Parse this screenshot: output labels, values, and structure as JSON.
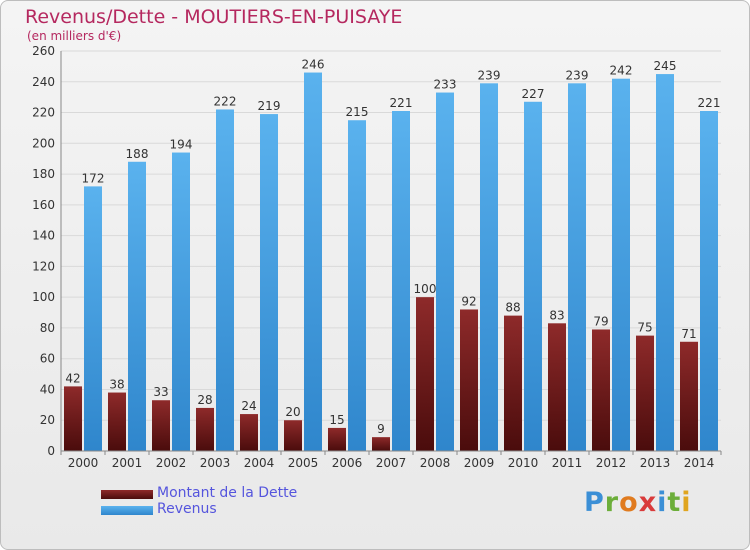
{
  "header": {
    "title": "Revenus/Dette - MOUTIERS-EN-PUISAYE",
    "subtitle": "(en milliers d'€)"
  },
  "chart_data": {
    "type": "bar",
    "categories": [
      "2000",
      "2001",
      "2002",
      "2003",
      "2004",
      "2005",
      "2006",
      "2007",
      "2008",
      "2009",
      "2010",
      "2011",
      "2012",
      "2013",
      "2014"
    ],
    "series": [
      {
        "name": "Montant de la Dette",
        "color": "#7a1e1e",
        "values": [
          42,
          38,
          33,
          28,
          24,
          20,
          15,
          9,
          100,
          92,
          88,
          83,
          79,
          75,
          71
        ]
      },
      {
        "name": "Revenus",
        "color": "#3f9fe6",
        "values": [
          172,
          188,
          194,
          222,
          219,
          246,
          215,
          221,
          233,
          239,
          227,
          239,
          242,
          245,
          221
        ]
      }
    ],
    "ylim": [
      0,
      260
    ],
    "yticks": [
      0,
      20,
      40,
      60,
      80,
      100,
      120,
      140,
      160,
      180,
      200,
      220,
      240,
      260
    ],
    "grid": true,
    "legend": "bottom-left"
  },
  "legend": {
    "items": [
      {
        "label": "Montant de la Dette",
        "color": "#6b1616"
      },
      {
        "label": "Revenus",
        "color": "#3f9fe6"
      }
    ]
  },
  "logo": {
    "text": "Proxiti",
    "letters": [
      "P",
      "r",
      "o",
      "x",
      "i",
      "t",
      "i"
    ],
    "colors": [
      "#3b8fd6",
      "#6cae3a",
      "#e07b1f",
      "#d93b3b",
      "#3b8fd6",
      "#6cae3a",
      "#e0a51f"
    ]
  }
}
